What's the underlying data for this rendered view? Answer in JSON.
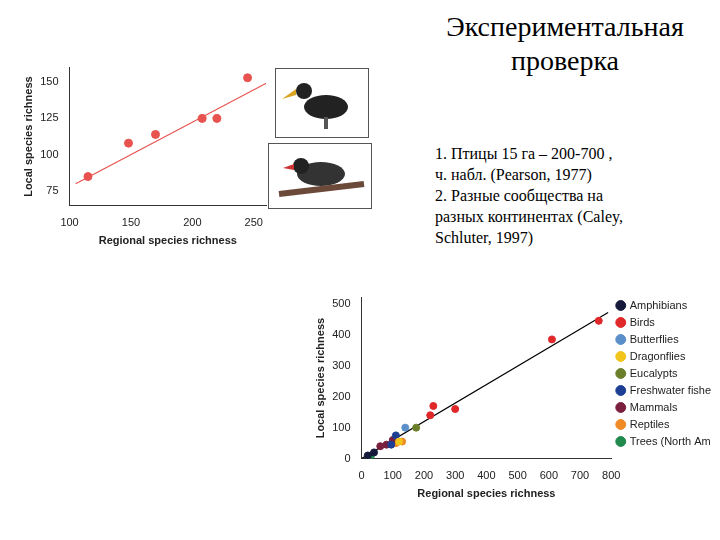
{
  "title": [
    "Экспериментальная",
    "проверка"
  ],
  "notes": [
    "1. Птицы 15 га – 200-700 ,",
    "ч. набл. (Pearson, 1977)",
    "2. Разные сообщества на",
    "разных континентах (Caley,",
    "Schluter, 1997)"
  ],
  "chart_data": [
    {
      "type": "scatter",
      "x_label": "Regional species richness",
      "y_label": "Local species richness",
      "x": [
        115,
        148,
        170,
        208,
        220,
        245
      ],
      "values": [
        85,
        108,
        114,
        125,
        125,
        153
      ],
      "color": "#e8524f",
      "marker": "circle",
      "trend_line": {
        "x": [
          105,
          262
        ],
        "values": [
          80,
          150
        ],
        "color": "#e8524f"
      },
      "xlim": [
        100,
        260
      ],
      "xticks": [
        100,
        150,
        200,
        250
      ],
      "ylim": [
        65,
        160
      ],
      "yticks": [
        75,
        100,
        125,
        150
      ],
      "grid": false
    },
    {
      "type": "scatter",
      "x_label": "Regional species richness",
      "y_label": "Local species richness",
      "series": [
        {
          "name": "Amphibians",
          "color": "#151a3a",
          "x": [
            20,
            40
          ],
          "values": [
            10,
            20
          ]
        },
        {
          "name": "Birds",
          "color": "#e0282a",
          "x": [
            220,
            230,
            300,
            610,
            760
          ],
          "values": [
            140,
            170,
            160,
            385,
            445
          ]
        },
        {
          "name": "Butterflies",
          "color": "#5b8fc9",
          "x": [
            140
          ],
          "values": [
            100
          ]
        },
        {
          "name": "Dragonflies",
          "color": "#f0c419",
          "x": [
            120
          ],
          "values": [
            55
          ]
        },
        {
          "name": "Eucalypts",
          "color": "#6b7f2a",
          "x": [
            175
          ],
          "values": [
            100
          ]
        },
        {
          "name": "Freshwater fishes",
          "color": "#1c3f94",
          "x": [
            95,
            110
          ],
          "values": [
            45,
            75
          ]
        },
        {
          "name": "Mammals",
          "color": "#7a1f3d",
          "x": [
            60,
            80,
            100
          ],
          "values": [
            40,
            45,
            60
          ]
        },
        {
          "name": "Reptiles",
          "color": "#f08a24",
          "x": [
            110,
            130
          ],
          "values": [
            50,
            55
          ]
        },
        {
          "name": "Trees (North America)",
          "color": "#1f8a4c",
          "x": [
            30
          ],
          "values": [
            10
          ]
        }
      ],
      "trend_line": {
        "x": [
          0,
          790
        ],
        "values": [
          0,
          472
        ],
        "color": "#000000"
      },
      "xlim": [
        0,
        800
      ],
      "xticks": [
        0,
        100,
        200,
        300,
        400,
        500,
        600,
        700,
        800
      ],
      "ylim": [
        0,
        520
      ],
      "yticks": [
        0,
        100,
        200,
        300,
        400,
        500
      ],
      "grid": false,
      "legend": "right"
    }
  ]
}
